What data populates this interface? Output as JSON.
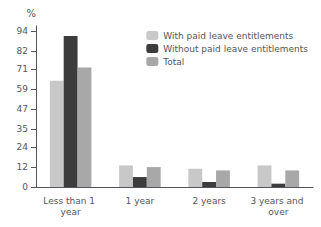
{
  "chart_data": {
    "type": "bar",
    "categories": [
      "Less than 1 year",
      "1 year",
      "2 years",
      "3 years and over"
    ],
    "series": [
      {
        "name": "With paid leave entitlements",
        "color": "#c8c8c8",
        "values": [
          64,
          13,
          11,
          13
        ]
      },
      {
        "name": "Without paid leave entitlements",
        "color": "#3c3c3c",
        "values": [
          91,
          6,
          3,
          2
        ]
      },
      {
        "name": "Total",
        "color": "#a8a8a8",
        "values": [
          72,
          12,
          10,
          10
        ]
      }
    ],
    "ylabel": "%",
    "ylim": [
      0,
      97
    ],
    "yticks": [
      0,
      12,
      24,
      35,
      47,
      59,
      71,
      82,
      94
    ],
    "grid": false,
    "legend": "upper right"
  }
}
